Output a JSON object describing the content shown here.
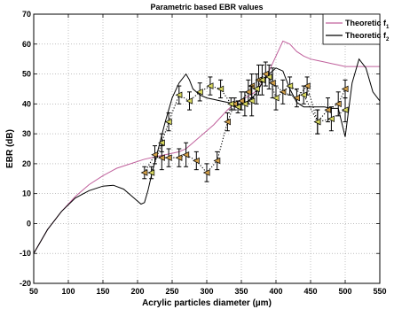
{
  "chart_data": {
    "type": "line",
    "title": "Parametric based EBR values",
    "xlabel": "Acrylic particles diameter (µm)",
    "ylabel": "EBR (dB)",
    "xlim": [
      50,
      550
    ],
    "ylim": [
      -20,
      70
    ],
    "xticks": [
      "50",
      "100",
      "150",
      "200",
      "250",
      "300",
      "350",
      "400",
      "450",
      "500",
      "550"
    ],
    "yticks": [
      "-20",
      "-10",
      "0",
      "10",
      "20",
      "30",
      "40",
      "50",
      "60",
      "70"
    ],
    "grid": true,
    "legend_position": "top-right",
    "legend": [
      {
        "label": "Theoretic f",
        "sub": "1",
        "color": "#c0609c"
      },
      {
        "label": "Theoretic f",
        "sub": "2",
        "color": "#000000"
      }
    ],
    "series": [
      {
        "name": "Theoretic f1",
        "color": "#c0609c",
        "x": [
          50,
          70,
          90,
          110,
          130,
          150,
          170,
          190,
          210,
          230,
          250,
          260,
          270,
          280,
          290,
          300,
          310,
          320,
          330,
          340,
          350,
          360,
          370,
          380,
          390,
          400,
          410,
          420,
          430,
          440,
          450,
          460,
          470,
          480,
          490,
          500,
          510,
          520,
          530,
          540,
          550
        ],
        "y": [
          -10,
          -2,
          4,
          9,
          13,
          16,
          18.5,
          20,
          21.5,
          22.5,
          23.5,
          24,
          25,
          27,
          29,
          31,
          33,
          35.5,
          38,
          40,
          41.5,
          42.5,
          44,
          47,
          51,
          56,
          61,
          60,
          57.5,
          56,
          55,
          54.5,
          54,
          53.5,
          53,
          52.5,
          52.5,
          52.5,
          52.5,
          52.5,
          52.5
        ]
      },
      {
        "name": "Theoretic f2",
        "color": "#000000",
        "x": [
          50,
          70,
          90,
          110,
          130,
          150,
          165,
          180,
          195,
          205,
          210,
          215,
          220,
          230,
          240,
          250,
          260,
          270,
          275,
          280,
          290,
          300,
          310,
          320,
          330,
          340,
          350,
          360,
          370,
          380,
          390,
          400,
          410,
          420,
          430,
          440,
          450,
          460,
          470,
          480,
          490,
          500,
          510,
          520,
          530,
          540,
          550
        ],
        "y": [
          -10,
          -2,
          4,
          8.5,
          11,
          12.5,
          12.8,
          11.5,
          8.5,
          6.5,
          7,
          11,
          16,
          25,
          34,
          42,
          47,
          50,
          48,
          45,
          43,
          42,
          41.5,
          41,
          40.5,
          40,
          40,
          41,
          43,
          47,
          50,
          52,
          51,
          45,
          40.5,
          39,
          39,
          39,
          39,
          38.5,
          38.5,
          29,
          47,
          55,
          52,
          44,
          41
        ]
      },
      {
        "name": "",
        "style": "dotted",
        "marker": "triangle",
        "color": "#d2a04a",
        "x": [
          210,
          225,
          235,
          245,
          260,
          270,
          285,
          300,
          315,
          330,
          340,
          350,
          360,
          365,
          375,
          385,
          395,
          410,
          430,
          445,
          460,
          475,
          490,
          500
        ],
        "y": [
          17,
          23,
          22,
          22,
          22,
          23,
          21,
          17,
          21,
          34,
          40,
          41,
          44,
          46,
          48,
          50,
          47,
          44,
          42,
          46,
          34,
          38,
          40,
          45
        ],
        "err": [
          2,
          3,
          4,
          3,
          3,
          4,
          3,
          3,
          3,
          3,
          2,
          3,
          4,
          4,
          5,
          4,
          5,
          4,
          3,
          3,
          4,
          4,
          4,
          3
        ]
      },
      {
        "name": "",
        "style": "dotted",
        "marker": "triangle",
        "color": "#d8d860",
        "x": [
          220,
          235,
          245,
          260,
          275,
          290,
          305,
          320,
          335,
          345,
          355,
          365,
          372,
          380,
          390,
          400,
          420,
          440,
          460,
          480,
          500
        ],
        "y": [
          17,
          27,
          34,
          43,
          41,
          44,
          46,
          45,
          40,
          39,
          40,
          41,
          45,
          48,
          49,
          42,
          46,
          43,
          34,
          35,
          38
        ],
        "err": [
          2,
          3,
          3,
          3,
          3,
          3,
          3,
          3,
          2,
          2,
          4,
          5,
          5,
          5,
          4,
          4,
          3,
          3,
          4,
          4,
          4
        ]
      }
    ]
  }
}
